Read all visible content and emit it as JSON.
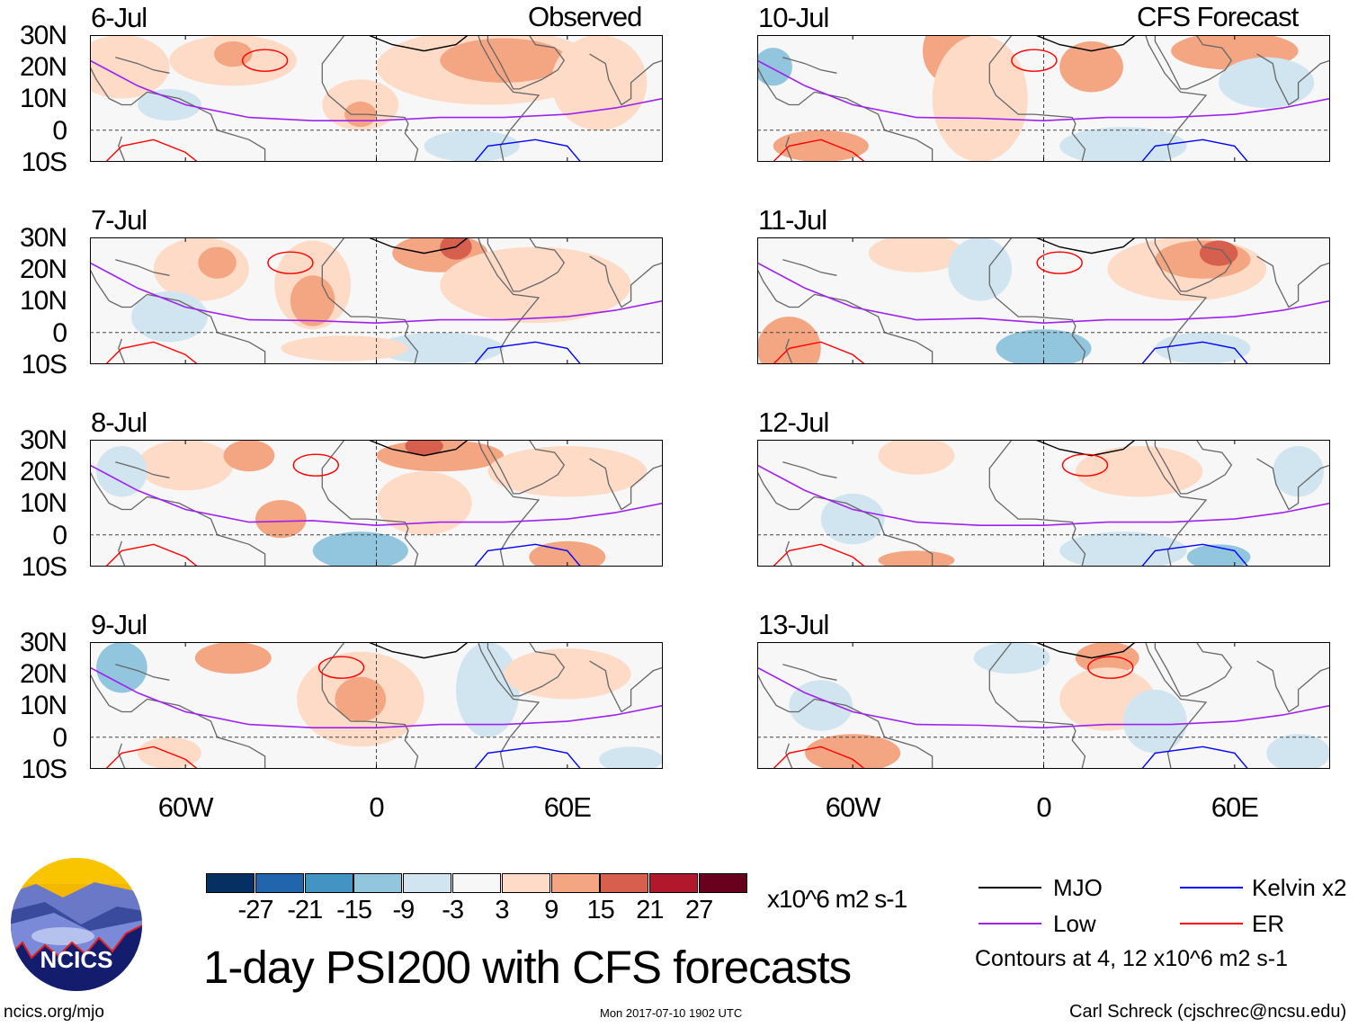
{
  "headers": {
    "observed": "Observed",
    "forecast": "CFS Forecast"
  },
  "panels": [
    {
      "date": "6-Jul",
      "group": "observed"
    },
    {
      "date": "7-Jul",
      "group": "observed"
    },
    {
      "date": "8-Jul",
      "group": "observed"
    },
    {
      "date": "9-Jul",
      "group": "observed"
    },
    {
      "date": "10-Jul",
      "group": "forecast"
    },
    {
      "date": "11-Jul",
      "group": "forecast"
    },
    {
      "date": "12-Jul",
      "group": "forecast"
    },
    {
      "date": "13-Jul",
      "group": "forecast"
    }
  ],
  "lat_ticks": [
    "30N",
    "20N",
    "10N",
    "0",
    "10S"
  ],
  "lon_ticks": [
    "60W",
    "0",
    "60E"
  ],
  "colorbar": {
    "labels": [
      "-27",
      "-21",
      "-15",
      "-9",
      "-3",
      "3",
      "9",
      "15",
      "21",
      "27"
    ],
    "colors": [
      "#053061",
      "#2166ac",
      "#4393c3",
      "#92c5de",
      "#d1e5f0",
      "#f7f7f7",
      "#fddbc7",
      "#f4a582",
      "#d6604d",
      "#b2182b",
      "#67001f"
    ],
    "units": "x10^6 m2 s-1"
  },
  "title": "1-day PSI200 with CFS forecasts",
  "legend": {
    "items": [
      {
        "label": "MJO",
        "color": "#000000"
      },
      {
        "label": "Kelvin x2",
        "color": "#0000ff"
      },
      {
        "label": "Low",
        "color": "#a020f0"
      },
      {
        "label": "ER",
        "color": "#ff0000"
      }
    ],
    "note": "Contours at 4, 12 x10^6 m2 s-1"
  },
  "logo": {
    "text": "NCICS"
  },
  "footer": {
    "url": "ncics.org/mjo",
    "timestamp": "Mon 2017-07-10 1902 UTC",
    "credit": "Carl Schreck (cjschrec@ncsu.edu)"
  }
}
